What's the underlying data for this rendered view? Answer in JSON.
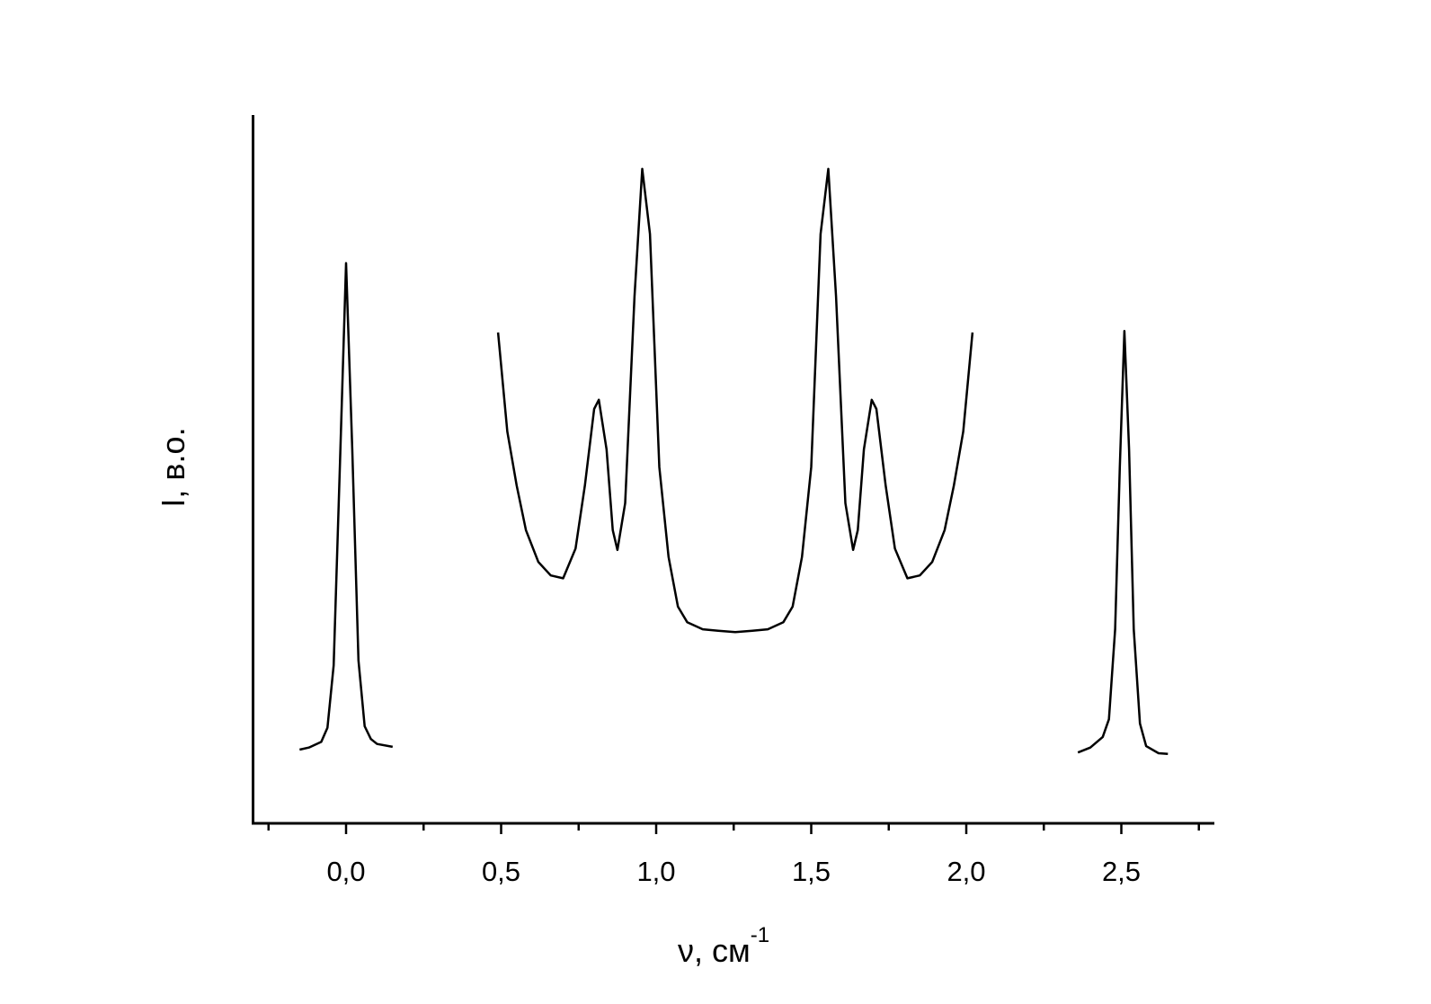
{
  "chart_data": {
    "type": "line",
    "xlabel": "ν, см",
    "xlabel_superscript": "-1",
    "ylabel": "I, в.о.",
    "color": "#000000",
    "xlim": [
      -0.3,
      2.8
    ],
    "ylim": [
      0,
      100
    ],
    "xticks": [
      {
        "value": 0,
        "label": "0,0"
      },
      {
        "value": 0.5,
        "label": "0,5"
      },
      {
        "value": 1,
        "label": "1,0"
      },
      {
        "value": 1.5,
        "label": "1,5"
      },
      {
        "value": 2,
        "label": "2,0"
      },
      {
        "value": 2.5,
        "label": "2,5"
      }
    ],
    "xminor_ticks": [
      -0.25,
      0.25,
      0.75,
      1.25,
      1.75,
      2.25,
      2.75
    ],
    "yticks": [],
    "x": [
      -0.15,
      -0.12,
      -0.08,
      -0.06,
      -0.04,
      -0.02,
      0,
      0.02,
      0.04,
      0.06,
      0.08,
      0.1,
      0.15,
      null,
      0.49,
      0.52,
      0.55,
      0.58,
      0.62,
      0.66,
      0.7,
      0.74,
      0.77,
      0.8,
      0.815,
      0.84,
      0.86,
      0.875,
      0.9,
      0.93,
      0.955,
      0.98,
      1.01,
      1.04,
      1.07,
      1.1,
      1.15,
      1.2,
      1.255,
      1.31,
      1.36,
      1.41,
      1.44,
      1.47,
      1.5,
      1.53,
      1.555,
      1.58,
      1.61,
      1.635,
      1.65,
      1.67,
      1.695,
      1.71,
      1.74,
      1.77,
      1.81,
      1.85,
      1.89,
      1.93,
      1.96,
      1.99,
      2.02,
      null,
      2.36,
      2.4,
      2.44,
      2.46,
      2.48,
      2.495,
      2.51,
      2.525,
      2.54,
      2.56,
      2.58,
      2.62,
      2.65
    ],
    "values": [
      10.4,
      10.7,
      11.5,
      13.5,
      22.3,
      50.3,
      79.1,
      52.8,
      23,
      13.7,
      11.9,
      11.2,
      10.8,
      null,
      69.3,
      55.3,
      47.7,
      41.4,
      36.9,
      35.0,
      34.6,
      38.8,
      47.7,
      58.5,
      59.8,
      52.8,
      41.4,
      38.6,
      45.2,
      74.4,
      92.4,
      83.2,
      50.3,
      37.6,
      30.6,
      28.4,
      27.4,
      27.2,
      27.0,
      27.2,
      27.4,
      28.4,
      30.6,
      37.6,
      50.3,
      83.2,
      92.4,
      74.4,
      45.2,
      38.6,
      41.4,
      52.8,
      59.8,
      58.5,
      47.7,
      38.8,
      34.6,
      35.0,
      36.9,
      41.4,
      47.7,
      55.3,
      69.3,
      null,
      10.0,
      10.7,
      12.2,
      14.7,
      27.4,
      50.3,
      69.5,
      52.8,
      27.4,
      14.1,
      10.9,
      9.9,
      9.8
    ]
  }
}
